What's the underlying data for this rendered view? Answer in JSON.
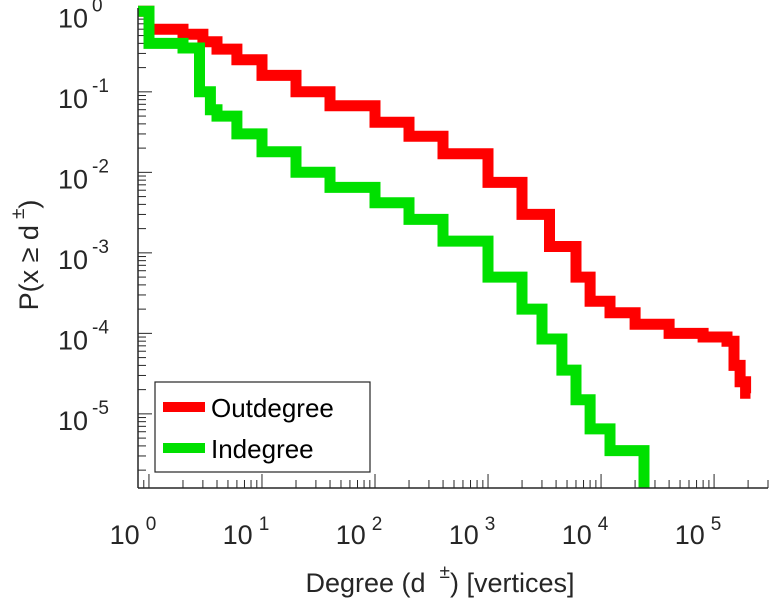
{
  "chart_data": {
    "type": "line",
    "scale": {
      "x": "log",
      "y": "log"
    },
    "xlabel": {
      "main": "Degree (d",
      "sup": "±",
      "tail": ") [vertices]"
    },
    "ylabel": {
      "main": "P(x ≥ d",
      "sup": "±",
      "tail": ")"
    },
    "xlim": [
      0.8,
      300000
    ],
    "ylim": [
      1.2e-06,
      1.1
    ],
    "x_ticks": [
      {
        "base": "10",
        "exp": "0",
        "value": 1
      },
      {
        "base": "10",
        "exp": "1",
        "value": 10
      },
      {
        "base": "10",
        "exp": "2",
        "value": 100
      },
      {
        "base": "10",
        "exp": "3",
        "value": 1000
      },
      {
        "base": "10",
        "exp": "4",
        "value": 10000
      },
      {
        "base": "10",
        "exp": "5",
        "value": 100000
      }
    ],
    "y_ticks": [
      {
        "base": "10",
        "exp": "0",
        "value": 1
      },
      {
        "base": "10",
        "exp": "-1",
        "value": 0.1
      },
      {
        "base": "10",
        "exp": "-2",
        "value": 0.01
      },
      {
        "base": "10",
        "exp": "-3",
        "value": 0.001
      },
      {
        "base": "10",
        "exp": "-4",
        "value": 0.0001
      },
      {
        "base": "10",
        "exp": "-5",
        "value": 1e-05
      }
    ],
    "legend": {
      "position": "bottom-left"
    },
    "series": [
      {
        "name": "Outdegree",
        "color": "#ff0000",
        "step": true,
        "points": [
          [
            0.8,
            1.0
          ],
          [
            1,
            0.6
          ],
          [
            2,
            0.52
          ],
          [
            3,
            0.42
          ],
          [
            4,
            0.34
          ],
          [
            6,
            0.25
          ],
          [
            10,
            0.16
          ],
          [
            20,
            0.1
          ],
          [
            40,
            0.067
          ],
          [
            100,
            0.042
          ],
          [
            200,
            0.028
          ],
          [
            400,
            0.017
          ],
          [
            1000,
            0.0075
          ],
          [
            2000,
            0.003
          ],
          [
            3500,
            0.0012
          ],
          [
            6000,
            0.0005
          ],
          [
            8000,
            0.00025
          ],
          [
            12000,
            0.00018
          ],
          [
            20000,
            0.00013
          ],
          [
            40000,
            0.0001
          ],
          [
            80000,
            9e-05
          ],
          [
            130000,
            8e-05
          ],
          [
            150000,
            4e-05
          ],
          [
            170000,
            2.5e-05
          ],
          [
            190000,
            1.8e-05
          ],
          [
            210000,
            1.8e-05
          ]
        ]
      },
      {
        "name": "Indegree",
        "color": "#00e000",
        "step": true,
        "points": [
          [
            0.8,
            1.0
          ],
          [
            1,
            0.4
          ],
          [
            2,
            0.35
          ],
          [
            2.6,
            0.35
          ],
          [
            2.8,
            0.1
          ],
          [
            3.5,
            0.06
          ],
          [
            4,
            0.05
          ],
          [
            6,
            0.03
          ],
          [
            10,
            0.018
          ],
          [
            20,
            0.01
          ],
          [
            40,
            0.0065
          ],
          [
            100,
            0.0042
          ],
          [
            200,
            0.0026
          ],
          [
            400,
            0.0014
          ],
          [
            1000,
            0.0005
          ],
          [
            2000,
            0.0002
          ],
          [
            3000,
            8.5e-05
          ],
          [
            4500,
            3.5e-05
          ],
          [
            6000,
            1.5e-05
          ],
          [
            8000,
            6.5e-06
          ],
          [
            12000,
            3.5e-06
          ],
          [
            20000,
            3.5e-06
          ],
          [
            24000,
            1.2e-06
          ]
        ]
      }
    ]
  }
}
